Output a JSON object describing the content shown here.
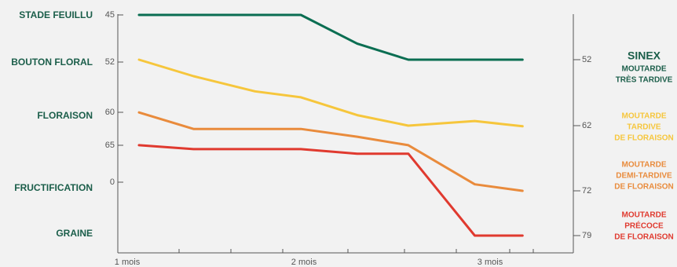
{
  "chart_data": {
    "type": "line",
    "stages": [
      "STADE FEUILLU",
      "BOUTON FLORAL",
      "FLORAISON",
      "FRUCTIFICATION",
      "GRAINE"
    ],
    "left_ticks": [
      "45",
      "52",
      "60",
      "65",
      "0"
    ],
    "right_ticks": [
      "52",
      "62",
      "72",
      "79"
    ],
    "x_ticks": [
      "1 mois",
      "2 mois",
      "3 mois"
    ],
    "x": [
      1.0,
      1.32,
      1.68,
      1.95,
      2.28,
      2.58,
      2.97,
      3.25
    ],
    "series": [
      {
        "name": "SINEX MOUTARDE TRÈS TARDIVE",
        "legend": [
          "SINEX",
          "MOUTARDE",
          "TRÈS TARDIVE"
        ],
        "color": "#0b6e52",
        "values": [
          45,
          45,
          45,
          45,
          49.5,
          52,
          52,
          52
        ]
      },
      {
        "name": "MOUTARDE TARDIVE DE FLORAISON",
        "legend": [
          "MOUTARDE",
          "TARDIVE",
          "DE FLORAISON"
        ],
        "color": "#f6c63c",
        "values": [
          52,
          54.5,
          56.8,
          57.7,
          60.4,
          62,
          61.3,
          62.1
        ]
      },
      {
        "name": "MOUTARDE DEMI-TARDIVE DE FLORAISON",
        "legend": [
          "MOUTARDE",
          "DEMI-TARDIVE",
          "DE FLORAISON"
        ],
        "color": "#e98b3c",
        "values": [
          60,
          62.5,
          62.5,
          62.5,
          63.7,
          65,
          71,
          72
        ]
      },
      {
        "name": "MOUTARDE PRÉCOCE DE FLORAISON",
        "legend": [
          "MOUTARDE",
          "PRÉCOCE",
          "DE FLORAISON"
        ],
        "color": "#e03a2f",
        "values": [
          65,
          65.6,
          65.6,
          65.6,
          66.3,
          66.3,
          79,
          79
        ]
      }
    ],
    "grid": false,
    "legend_position": "right"
  }
}
